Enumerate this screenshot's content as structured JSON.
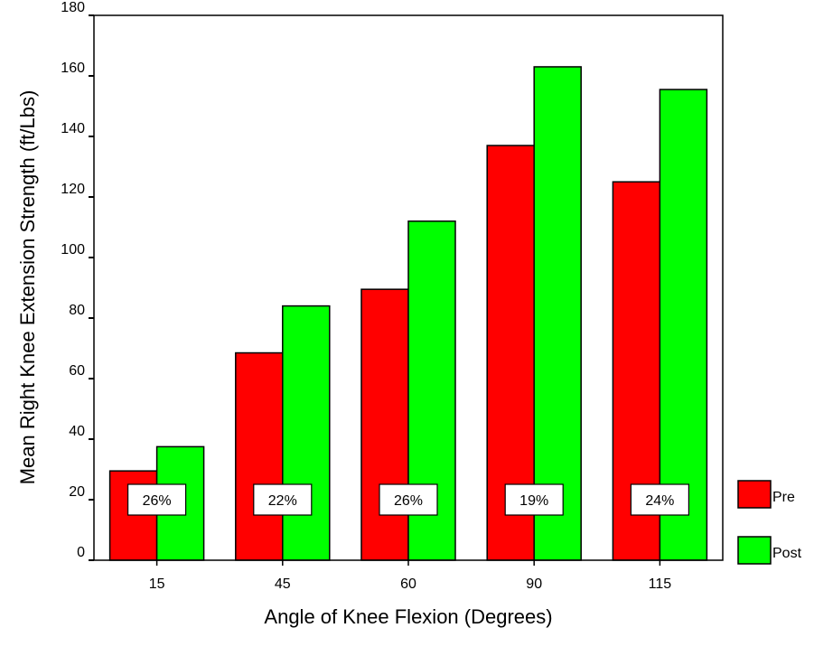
{
  "chart_data": {
    "type": "bar",
    "title": "",
    "xlabel": "Angle of Knee Flexion (Degrees)",
    "ylabel": "Mean Right Knee Extension Strength (ft/Lbs)",
    "categories": [
      "15",
      "45",
      "60",
      "90",
      "115"
    ],
    "series": [
      {
        "name": "Pre",
        "color": "#ff0000",
        "values": [
          29.5,
          68.5,
          89.5,
          137,
          125
        ]
      },
      {
        "name": "Post",
        "color": "#00ff00",
        "values": [
          37.5,
          84,
          112,
          163,
          155.5
        ]
      }
    ],
    "annotations": [
      "26%",
      "22%",
      "26%",
      "19%",
      "24%"
    ],
    "annotation_y": 20,
    "ylim": [
      0,
      180
    ],
    "yticks": [
      "0",
      "20",
      "40",
      "60",
      "80",
      "100",
      "120",
      "140",
      "160",
      "180"
    ],
    "legend": "right",
    "grid": false
  }
}
